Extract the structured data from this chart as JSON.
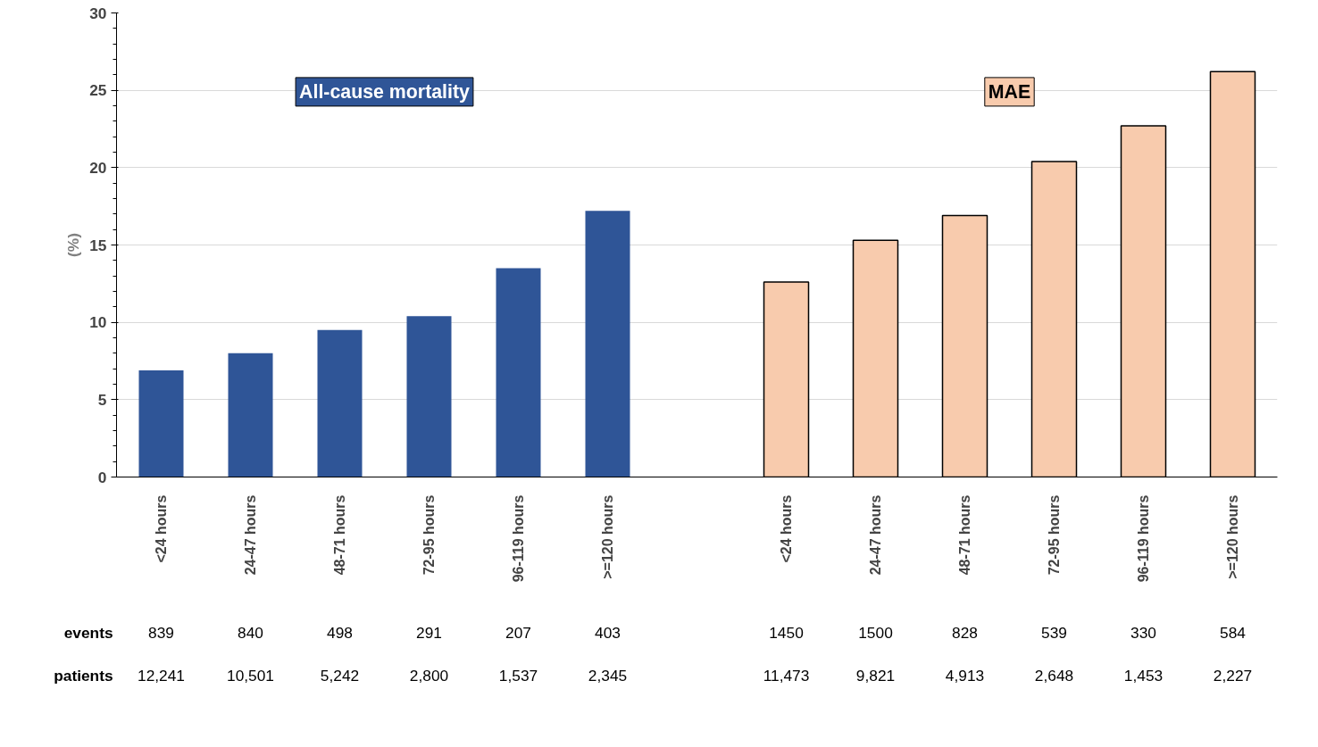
{
  "chart_data": {
    "type": "bar",
    "ylabel": "(%)",
    "categories": [
      "<24 hours",
      "24-47 hours",
      "48-71 hours",
      "72-95 hours",
      "96-119 hours",
      ">=120 hours",
      null,
      "<24 hours",
      "24-47 hours",
      "48-71 hours",
      "72-95 hours",
      "96-119 hours",
      ">=120 hours"
    ],
    "series": [
      {
        "name": "All-cause mortality",
        "color": "#2f5597",
        "values": [
          6.9,
          8.0,
          9.5,
          10.4,
          13.5,
          17.2,
          null,
          null,
          null,
          null,
          null,
          null,
          null
        ]
      },
      {
        "name": "MAE",
        "color": "#f8cbad",
        "values": [
          null,
          null,
          null,
          null,
          null,
          null,
          null,
          12.6,
          15.3,
          16.9,
          20.4,
          22.7,
          26.2
        ]
      }
    ],
    "ylim": [
      0,
      30
    ],
    "yticks": [
      0,
      5,
      10,
      15,
      20,
      25,
      30
    ],
    "grid": "y",
    "annotations": [
      "events",
      "839",
      "840",
      "498",
      "291",
      "207",
      "403",
      "1450",
      "1500",
      "828",
      "539",
      "330",
      "584",
      "patients",
      "12,241",
      "10,501",
      "5,242",
      "2,800",
      "1,537",
      "2,345",
      "11,473",
      "9,821",
      "4,913",
      "2,648",
      "1,453",
      "2,227"
    ]
  }
}
